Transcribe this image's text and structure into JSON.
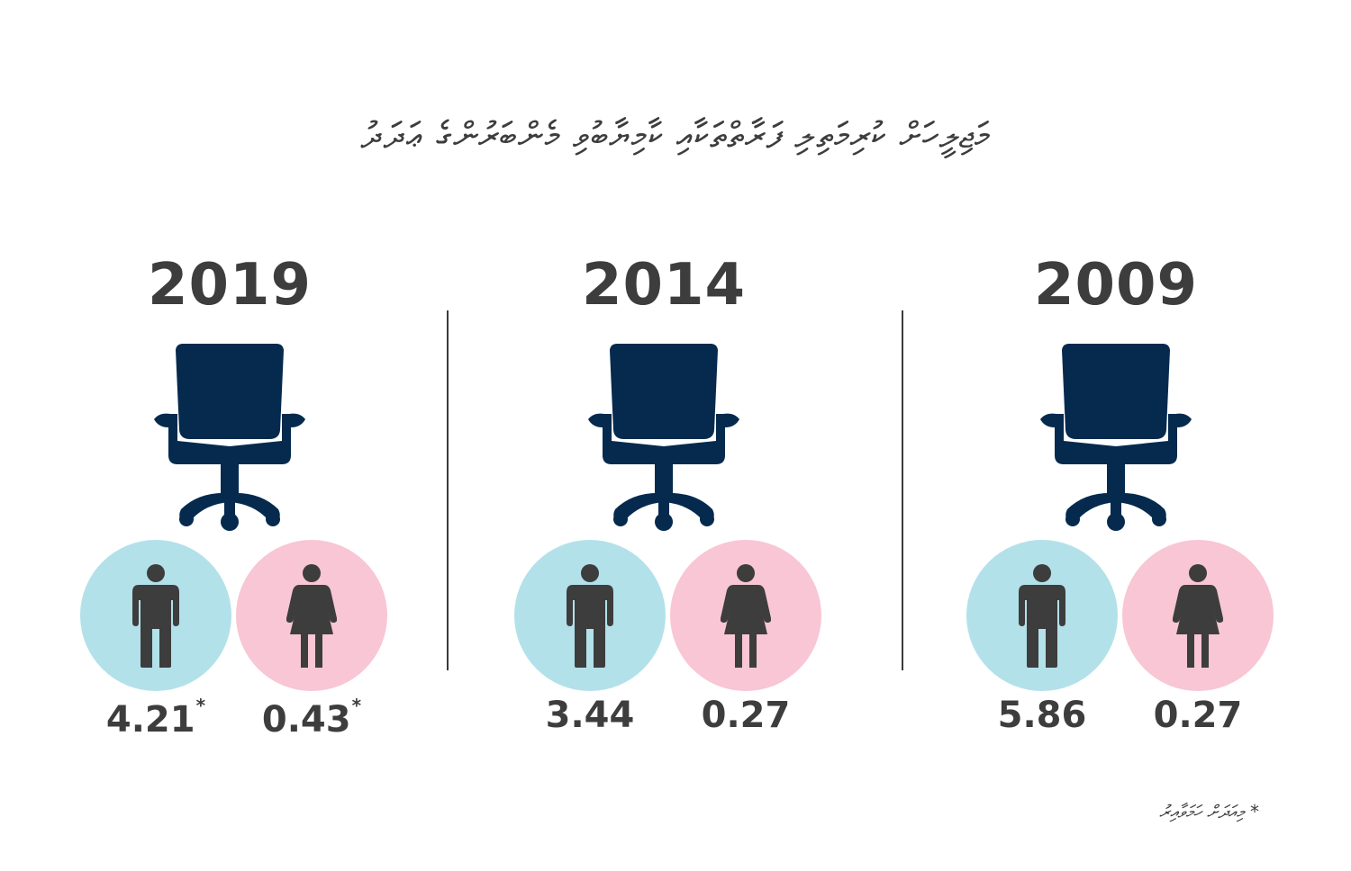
{
  "title": "މަޖިލީހަށް ކުރިމަތިލި ފަރާތްތަކާއި ކާމިޔާބުވި މެންބަރުންގެ ޢަދަދު",
  "footnote": "* މިއަދަށް ހަމަވާއިރު",
  "colors": {
    "male": "#b3e1ea",
    "female": "#f8c6d4",
    "chair": "#052a4e",
    "figure": "#3d3d3d"
  },
  "icons": {
    "seat": "office-chair-icon",
    "male": "male-figure-icon",
    "female": "female-figure-icon"
  },
  "chart_data": {
    "type": "pictograph",
    "title": "މަޖިލީހަށް ކުރިމަތިލި ފަރާތްތަކާއި ކާމިޔާބުވި މެންބަރުންގެ ޢަދަދު",
    "categories": [
      "2019",
      "2014",
      "2009"
    ],
    "series": [
      {
        "name": "male",
        "values": [
          4.21,
          3.44,
          5.86
        ],
        "labels": [
          "4.21",
          "3.44",
          "5.86"
        ],
        "asterisk": [
          true,
          false,
          false
        ]
      },
      {
        "name": "female",
        "values": [
          0.43,
          0.27,
          0.27
        ],
        "labels": [
          "0.43",
          "0.27",
          "0.27"
        ],
        "asterisk": [
          true,
          false,
          false
        ]
      }
    ]
  }
}
